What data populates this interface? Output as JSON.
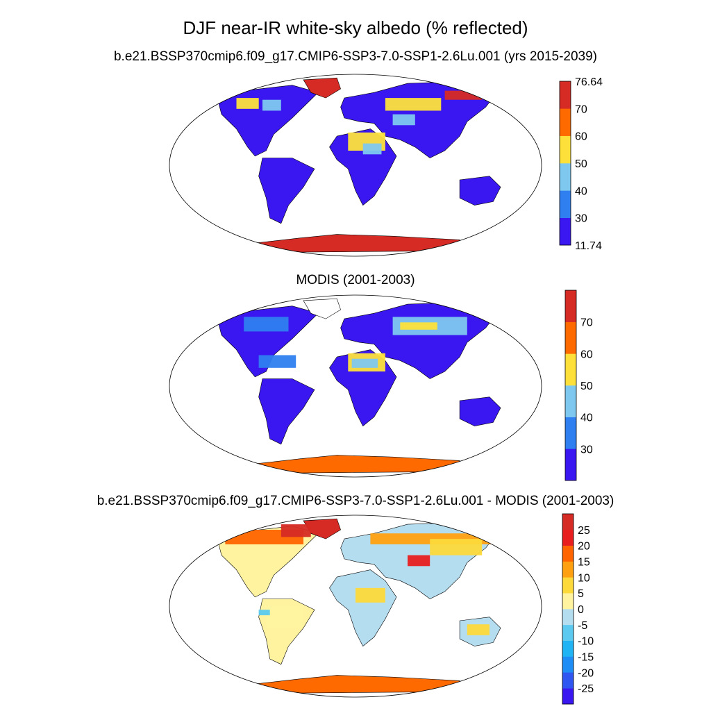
{
  "figure": {
    "title": "DJF near-IR white-sky albedo (% reflected)"
  },
  "panels": [
    {
      "id": "model",
      "subtitle": "b.e21.BSSP370cmip6.f09_g17.CMIP6-SSP3-7.0-SSP1-2.6Lu.001 (yrs 2015-2039)",
      "colorbar": {
        "colors": [
          "#3a16f0",
          "#2f7ff0",
          "#7ec8f0",
          "#fde13a",
          "#ff6a00",
          "#d62a24"
        ],
        "labels": [
          "11.74",
          "30",
          "40",
          "50",
          "60",
          "70",
          "76.64"
        ]
      }
    },
    {
      "id": "obs",
      "subtitle": "MODIS (2001-2003)",
      "colorbar": {
        "colors": [
          "#3a16f0",
          "#2f7ff0",
          "#7ec8f0",
          "#fde13a",
          "#ff6a00",
          "#d62a24"
        ],
        "labels": [
          "30",
          "40",
          "50",
          "60",
          "70"
        ]
      }
    },
    {
      "id": "diff",
      "subtitle": "b.e21.BSSP370cmip6.f09_g17.CMIP6-SSP3-7.0-SSP1-2.6Lu.001 - MODIS (2001-2003)",
      "colorbar": {
        "colors": [
          "#3a16f0",
          "#2f56f0",
          "#1e8df5",
          "#21b4f5",
          "#5ccaf0",
          "#b4ddf0",
          "#fff3a0",
          "#fdd93a",
          "#ffa010",
          "#ff6400",
          "#e81e1e",
          "#d62a24"
        ],
        "labels": [
          "-25",
          "-20",
          "-15",
          "-10",
          "-5",
          "0",
          "5",
          "10",
          "15",
          "20",
          "25"
        ]
      }
    }
  ]
}
